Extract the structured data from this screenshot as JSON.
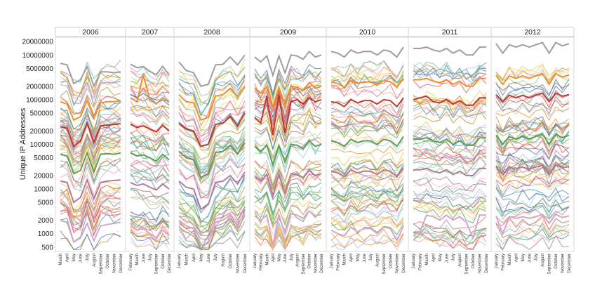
{
  "chart_data": {
    "type": "line",
    "ylabel": "Unique IP Addresses",
    "yscale": "log",
    "ylim": [
      400,
      25000000
    ],
    "yticks": [
      {
        "value": 20000000,
        "label": "20000000"
      },
      {
        "value": 10000000,
        "label": "10000000"
      },
      {
        "value": 5000000,
        "label": "5000000"
      },
      {
        "value": 2000000,
        "label": "2000000"
      },
      {
        "value": 1000000,
        "label": "1000000"
      },
      {
        "value": 500000,
        "label": "500000"
      },
      {
        "value": 200000,
        "label": "200000"
      },
      {
        "value": 100000,
        "label": "100000"
      },
      {
        "value": 50000,
        "label": "50000"
      },
      {
        "value": 20000,
        "label": "20000"
      },
      {
        "value": 10000,
        "label": "10000"
      },
      {
        "value": 5000,
        "label": "5000"
      },
      {
        "value": 2000,
        "label": "2000"
      },
      {
        "value": 1000,
        "label": "1000"
      },
      {
        "value": 500,
        "label": "500"
      }
    ],
    "grid": false,
    "legend": "none",
    "panels": [
      {
        "year": "2006",
        "months": [
          "March",
          "April",
          "May",
          "June",
          "July",
          "August",
          "September",
          "October",
          "November",
          "December"
        ],
        "series": [
          {
            "color": "#9e9e9e",
            "values": [
              6500000,
              6000000,
              2300000,
              2800000,
              5500000,
              2000000,
              4200000,
              4200000,
              4000000,
              4200000
            ]
          },
          {
            "color": "#f28e2b",
            "values": [
              900000,
              800000,
              350000,
              420000,
              950000,
              380000,
              850000,
              900000,
              900000,
              950000
            ]
          },
          {
            "color": "#c0392b",
            "values": [
              250000,
              230000,
              90000,
              120000,
              300000,
              110000,
              260000,
              270000,
              280000,
              290000
            ]
          },
          {
            "color": "#59a14f",
            "values": [
              60000,
              55000,
              22000,
              26000,
              65000,
              24000,
              60000,
              62000,
              60000,
              64000
            ]
          },
          {
            "color": "#b07aa1",
            "values": [
              15000,
              14000,
              5000,
              6500,
              16000,
              6000,
              14000,
              15000,
              15500,
              16000
            ]
          },
          {
            "color": "#d4a6c8",
            "values": [
              2000,
              1800,
              650,
              800,
              1700,
              700,
              1500,
              1600,
              1700,
              1800
            ]
          }
        ]
      },
      {
        "year": "2007",
        "months": [
          "February",
          "March",
          "June",
          "July",
          "September",
          "October",
          "December"
        ],
        "series": [
          {
            "color": "#9e9e9e",
            "values": [
              6200000,
              5200000,
              5500000,
              4300000,
              3600000,
              5600000,
              3600000
            ]
          },
          {
            "color": "#f28e2b",
            "values": [
              1100000,
              900000,
              3600000,
              1000000,
              800000,
              1100000,
              900000
            ]
          },
          {
            "color": "#c0392b",
            "values": [
              280000,
              240000,
              260000,
              220000,
              190000,
              270000,
              200000
            ]
          },
          {
            "color": "#59a14f",
            "values": [
              65000,
              55000,
              58000,
              50000,
              42000,
              60000,
              45000
            ]
          },
          {
            "color": "#b07aa1",
            "values": [
              14000,
              12000,
              13000,
              11000,
              9500,
              13000,
              10000
            ]
          },
          {
            "color": "#d4a6c8",
            "values": [
              1500,
              1200,
              1300,
              1000,
              800,
              1200,
              900
            ]
          }
        ]
      },
      {
        "year": "2008",
        "months": [
          "January",
          "March",
          "April",
          "May",
          "June",
          "July",
          "August",
          "October",
          "November",
          "December"
        ],
        "series": [
          {
            "color": "#9e9e9e",
            "values": [
              7000000,
              4500000,
              4000000,
              2000000,
              2200000,
              6000000,
              6200000,
              9000000,
              6000000,
              10000000
            ]
          },
          {
            "color": "#f28e2b",
            "values": [
              1300000,
              900000,
              850000,
              350000,
              400000,
              1200000,
              1300000,
              1800000,
              1200000,
              2000000
            ]
          },
          {
            "color": "#c0392b",
            "values": [
              300000,
              220000,
              200000,
              90000,
              100000,
              280000,
              300000,
              420000,
              260000,
              500000
            ]
          },
          {
            "color": "#59a14f",
            "values": [
              70000,
              50000,
              45000,
              18000,
              22000,
              65000,
              70000,
              95000,
              60000,
              110000
            ]
          },
          {
            "color": "#b07aa1",
            "values": [
              15000,
              11000,
              10000,
              3500,
              4500,
              14000,
              15000,
              20000,
              13000,
              24000
            ]
          },
          {
            "color": "#d4a6c8",
            "values": [
              2000,
              1500,
              1300,
              550,
              600,
              1800,
              2000,
              2600,
              1500,
              3000
            ]
          }
        ]
      },
      {
        "year": "2009",
        "months": [
          "January",
          "February",
          "March",
          "April",
          "May",
          "June",
          "July",
          "August",
          "September",
          "October",
          "November",
          "December"
        ],
        "series": [
          {
            "color": "#9e9e9e",
            "values": [
              9000000,
              7000000,
              9500000,
              3500000,
              9500000,
              4000000,
              10000000,
              9500000,
              8000000,
              12000000,
              9000000,
              10000000
            ]
          },
          {
            "color": "#f28e2b",
            "values": [
              1800000,
              1400000,
              1900000,
              700000,
              1900000,
              800000,
              2000000,
              1900000,
              1600000,
              2400000,
              1800000,
              2000000
            ]
          },
          {
            "color": "#c0392b",
            "values": [
              400000,
              300000,
              1200000,
              160000,
              1300000,
              180000,
              900000,
              1000000,
              800000,
              1100000,
              900000,
              1000000
            ]
          },
          {
            "color": "#59a14f",
            "values": [
              90000,
              70000,
              95000,
              35000,
              95000,
              40000,
              100000,
              95000,
              80000,
              120000,
              90000,
              100000
            ]
          },
          {
            "color": "#b07aa1",
            "values": [
              20000,
              15000,
              21000,
              7000,
              21000,
              8000,
              22000,
              21000,
              18000,
              26000,
              20000,
              22000
            ]
          },
          {
            "color": "#d4a6c8",
            "values": [
              2500,
              2000,
              2600,
              550,
              2600,
              1000,
              2800,
              2600,
              2200,
              3200,
              2500,
              2700
            ]
          }
        ]
      },
      {
        "year": "2010",
        "months": [
          "January",
          "February",
          "March",
          "April",
          "May",
          "June",
          "July",
          "August",
          "September",
          "October",
          "November",
          "December"
        ],
        "series": [
          {
            "color": "#9e9e9e",
            "values": [
              12000000,
              11000000,
              9000000,
              13000000,
              11000000,
              12000000,
              12000000,
              10000000,
              13000000,
              12000000,
              9000000,
              15000000
            ]
          },
          {
            "color": "#f28e2b",
            "values": [
              2500000,
              2300000,
              1900000,
              2700000,
              2300000,
              2500000,
              2500000,
              2100000,
              2700000,
              2500000,
              1900000,
              3000000
            ]
          },
          {
            "color": "#c0392b",
            "values": [
              900000,
              850000,
              700000,
              1000000,
              850000,
              950000,
              950000,
              800000,
              1000000,
              950000,
              700000,
              1100000
            ]
          },
          {
            "color": "#59a14f",
            "values": [
              120000,
              110000,
              90000,
              130000,
              110000,
              120000,
              120000,
              100000,
              130000,
              120000,
              90000,
              150000
            ]
          },
          {
            "color": "#b07aa1",
            "values": [
              25000,
              23000,
              19000,
              27000,
              23000,
              25000,
              25000,
              21000,
              27000,
              25000,
              19000,
              30000
            ]
          },
          {
            "color": "#d4a6c8",
            "values": [
              1200,
              1000,
              900,
              1400,
              1100,
              1300,
              1300,
              1000,
              1400,
              1300,
              700,
              1500
            ]
          }
        ]
      },
      {
        "year": "2011",
        "months": [
          "January",
          "February",
          "March",
          "April",
          "May",
          "June",
          "July",
          "August",
          "September",
          "October",
          "November",
          "December"
        ],
        "series": [
          {
            "color": "#9e9e9e",
            "values": [
              14000000,
              14000000,
              15000000,
              13000000,
              12000000,
              14000000,
              11000000,
              13000000,
              10000000,
              10000000,
              15000000,
              15000000
            ]
          },
          {
            "color": "#f28e2b",
            "values": [
              2800000,
              2800000,
              3000000,
              2600000,
              2400000,
              2800000,
              2200000,
              2600000,
              2000000,
              2000000,
              3000000,
              3000000
            ]
          },
          {
            "color": "#c0392b",
            "values": [
              1000000,
              1100000,
              1200000,
              900000,
              850000,
              1000000,
              800000,
              950000,
              750000,
              750000,
              1100000,
              1100000
            ]
          },
          {
            "color": "#59a14f",
            "values": [
              130000,
              130000,
              140000,
              120000,
              110000,
              130000,
              100000,
              120000,
              95000,
              95000,
              140000,
              140000
            ]
          },
          {
            "color": "#b07aa1",
            "values": [
              27000,
              27000,
              29000,
              25000,
              23000,
              27000,
              21000,
              25000,
              20000,
              20000,
              29000,
              29000
            ]
          },
          {
            "color": "#d4a6c8",
            "values": [
              900,
              1100,
              2600,
              2400,
              2000,
              2600,
              2000,
              2400,
              1800,
              800,
              2600,
              2600
            ]
          }
        ]
      },
      {
        "year": "2012",
        "months": [
          "January",
          "February",
          "March",
          "April",
          "May",
          "June",
          "July",
          "August",
          "September",
          "October",
          "November",
          "December"
        ],
        "series": [
          {
            "color": "#9e9e9e",
            "values": [
              18000000,
              11000000,
              17000000,
              15000000,
              17000000,
              15000000,
              17000000,
              19000000,
              11000000,
              19000000,
              16000000,
              18000000
            ]
          },
          {
            "color": "#f28e2b",
            "values": [
              3500000,
              2200000,
              3400000,
              3000000,
              3400000,
              3000000,
              3400000,
              3800000,
              2200000,
              3800000,
              3200000,
              3600000
            ]
          },
          {
            "color": "#c0392b",
            "values": [
              1300000,
              900000,
              1250000,
              1100000,
              1250000,
              1100000,
              1250000,
              1400000,
              900000,
              1400000,
              1200000,
              1300000
            ]
          },
          {
            "color": "#59a14f",
            "values": [
              160000,
              100000,
              150000,
              130000,
              150000,
              130000,
              150000,
              170000,
              100000,
              170000,
              140000,
              160000
            ]
          },
          {
            "color": "#b07aa1",
            "values": [
              32000,
              21000,
              31000,
              28000,
              31000,
              28000,
              31000,
              34000,
              21000,
              34000,
              30000,
              32000
            ]
          },
          {
            "color": "#d4a6c8",
            "values": [
              2500,
              1000,
              2400,
              2200,
              2400,
              2200,
              2400,
              2700,
              1700,
              2700,
              2300,
              2500
            ]
          }
        ]
      }
    ]
  }
}
